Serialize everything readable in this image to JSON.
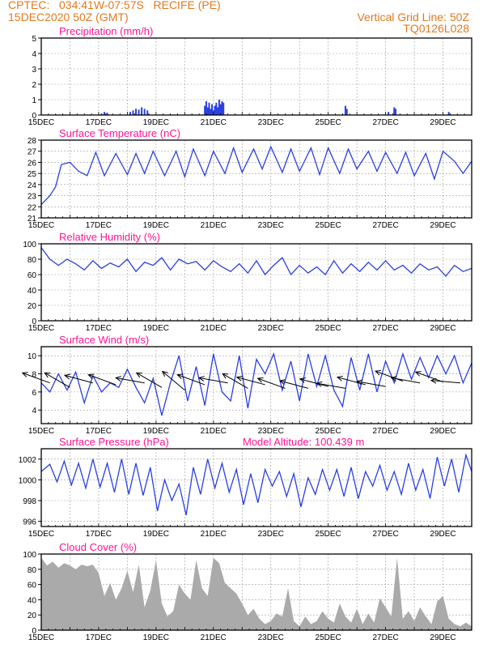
{
  "header": {
    "line1_left": "CPTEC:   034:41W-07:57S   RECIFE (PE)",
    "line2_left": "15DEC2020 50Z (GMT)",
    "line2_right": "Vertical Grid Line: 50Z",
    "line3_right": "TQ0126L028"
  },
  "colors": {
    "line": "#2b3fe0",
    "cloud": "#aaaaaa",
    "title": "#ff1493",
    "header": "#e07a1f",
    "wind": "#000000"
  },
  "x_ticks": [
    "15DEC",
    "17DEC",
    "19DEC",
    "21DEC",
    "23DEC",
    "25DEC",
    "27DEC",
    "29DEC"
  ],
  "x_tick_days": [
    0,
    2,
    4,
    6,
    8,
    10,
    12,
    14
  ],
  "x_range_days": [
    0,
    15
  ],
  "chart_data": [
    {
      "id": "precip",
      "type": "bar",
      "title": "Precipitation (mm/h)",
      "ylim": [
        0,
        5
      ],
      "yticks": [
        0,
        1,
        2,
        3,
        4,
        5
      ],
      "x_days": [
        2.1,
        2.2,
        2.3,
        3.1,
        3.2,
        3.3,
        3.4,
        3.5,
        3.6,
        3.7,
        5.7,
        5.75,
        5.8,
        5.85,
        5.9,
        5.95,
        6.0,
        6.05,
        6.1,
        6.15,
        6.2,
        6.25,
        6.3,
        6.35,
        10.6,
        10.65,
        12.1,
        12.3,
        12.35,
        14.2
      ],
      "values": [
        0.1,
        0.2,
        0.15,
        0.2,
        0.3,
        0.4,
        0.35,
        0.5,
        0.4,
        0.3,
        0.6,
        0.9,
        0.5,
        0.8,
        0.4,
        0.7,
        0.3,
        0.6,
        0.8,
        0.5,
        1.0,
        0.7,
        0.9,
        0.8,
        0.6,
        0.4,
        0.2,
        0.5,
        0.4,
        0.2
      ]
    },
    {
      "id": "temp",
      "type": "line",
      "title": "Surface Temperature (nC)",
      "ylim": [
        21,
        28
      ],
      "yticks": [
        21,
        22,
        23,
        24,
        25,
        26,
        27,
        28
      ],
      "x_days": [
        0,
        0.3,
        0.5,
        0.7,
        1.0,
        1.3,
        1.6,
        1.9,
        2.2,
        2.6,
        3.0,
        3.3,
        3.6,
        3.9,
        4.3,
        4.7,
        5.0,
        5.3,
        5.7,
        6.0,
        6.4,
        6.7,
        7.0,
        7.4,
        7.7,
        8.0,
        8.4,
        8.7,
        9.0,
        9.4,
        9.7,
        10.0,
        10.4,
        10.7,
        11.0,
        11.4,
        11.7,
        12.0,
        12.4,
        12.7,
        13.0,
        13.4,
        13.7,
        14.0,
        14.4,
        14.7,
        15.0
      ],
      "values": [
        22.2,
        23.0,
        23.8,
        25.8,
        26.0,
        25.2,
        24.8,
        26.9,
        24.8,
        26.8,
        24.9,
        26.8,
        25.0,
        27.0,
        24.8,
        27.0,
        24.7,
        27.2,
        24.8,
        27.0,
        25.0,
        27.3,
        25.1,
        27.2,
        25.4,
        27.4,
        25.1,
        27.2,
        25.2,
        27.3,
        24.9,
        27.3,
        25.0,
        27.2,
        25.4,
        27.0,
        25.2,
        26.9,
        25.0,
        26.9,
        24.8,
        26.8,
        24.5,
        27.0,
        26.1,
        25.0,
        26.1
      ]
    },
    {
      "id": "rh",
      "type": "line",
      "title": "Relative Humidity (%)",
      "ylim": [
        0,
        100
      ],
      "yticks": [
        0,
        20,
        40,
        60,
        80,
        100
      ],
      "x_days": [
        0,
        0.3,
        0.6,
        0.9,
        1.2,
        1.5,
        1.8,
        2.1,
        2.4,
        2.7,
        3.0,
        3.3,
        3.6,
        3.9,
        4.2,
        4.5,
        4.8,
        5.1,
        5.4,
        5.7,
        6.0,
        6.3,
        6.6,
        6.9,
        7.2,
        7.5,
        7.8,
        8.1,
        8.4,
        8.7,
        9.0,
        9.3,
        9.6,
        9.9,
        10.2,
        10.5,
        10.8,
        11.1,
        11.4,
        11.7,
        12.0,
        12.3,
        12.6,
        12.9,
        13.2,
        13.5,
        13.8,
        14.1,
        14.4,
        14.7,
        15.0
      ],
      "values": [
        95,
        80,
        72,
        80,
        74,
        66,
        78,
        68,
        75,
        70,
        80,
        64,
        76,
        72,
        82,
        66,
        80,
        74,
        77,
        66,
        78,
        70,
        64,
        74,
        62,
        78,
        60,
        72,
        82,
        60,
        72,
        62,
        70,
        60,
        78,
        62,
        74,
        64,
        76,
        66,
        78,
        66,
        72,
        62,
        74,
        66,
        70,
        58,
        72,
        64,
        68
      ]
    },
    {
      "id": "wind",
      "type": "line",
      "title": "Surface Wind (m/s)",
      "ylim": [
        2.5,
        11
      ],
      "yticks": [
        4,
        6,
        8,
        10
      ],
      "x_days": [
        0,
        0.3,
        0.6,
        0.9,
        1.2,
        1.5,
        1.8,
        2.1,
        2.4,
        2.7,
        3.0,
        3.3,
        3.6,
        3.9,
        4.2,
        4.5,
        4.8,
        5.1,
        5.4,
        5.7,
        6.0,
        6.3,
        6.6,
        6.9,
        7.2,
        7.5,
        7.8,
        8.1,
        8.4,
        8.7,
        9.0,
        9.3,
        9.6,
        9.9,
        10.2,
        10.5,
        10.8,
        11.1,
        11.4,
        11.7,
        12.0,
        12.3,
        12.6,
        12.9,
        13.2,
        13.5,
        13.8,
        14.1,
        14.4,
        14.7,
        15.0
      ],
      "values": [
        7.0,
        6.0,
        8.0,
        6.2,
        8.2,
        4.8,
        7.8,
        6.0,
        7.0,
        6.5,
        8.5,
        6.5,
        4.8,
        7.5,
        3.4,
        7.0,
        10.0,
        5.0,
        8.8,
        4.5,
        10.2,
        6.0,
        5.0,
        10.0,
        4.2,
        9.6,
        8.0,
        10.2,
        6.2,
        9.4,
        5.0,
        10.2,
        6.6,
        10.0,
        6.2,
        4.4,
        9.8,
        6.2,
        10.2,
        6.0,
        9.4,
        7.0,
        10.2,
        7.4,
        9.8,
        7.6,
        10.0,
        8.0,
        10.0,
        7.0,
        9.2
      ],
      "arrow_days": [
        0.3,
        1.0,
        1.8,
        2.6,
        3.6,
        4.2,
        5.0,
        5.7,
        6.5,
        7.2,
        7.8,
        8.5,
        9.3,
        10.0,
        10.6,
        11.3,
        12.0,
        12.6,
        13.2,
        14.0,
        14.6
      ],
      "arrow_speed": [
        7.0,
        6.5,
        7.0,
        6.8,
        7.0,
        6.5,
        6.2,
        6.8,
        7.0,
        6.4,
        6.8,
        6.4,
        6.4,
        6.6,
        6.4,
        6.8,
        6.6,
        7.2,
        7.0,
        7.1,
        7.0
      ],
      "arrow_dir": [
        160,
        150,
        165,
        160,
        170,
        150,
        140,
        160,
        170,
        150,
        165,
        160,
        165,
        165,
        170,
        165,
        170,
        160,
        170,
        160,
        175
      ]
    },
    {
      "id": "press",
      "type": "line",
      "title": "Surface Pressure (hPa)",
      "annotation": "Model Altitude: 100.439 m",
      "ylim": [
        995.5,
        1003
      ],
      "yticks": [
        996,
        998,
        1000,
        1002
      ],
      "x_days": [
        0,
        0.3,
        0.55,
        0.8,
        1.05,
        1.3,
        1.55,
        1.8,
        2.05,
        2.3,
        2.55,
        2.8,
        3.05,
        3.3,
        3.55,
        3.8,
        4.05,
        4.3,
        4.55,
        4.8,
        5.05,
        5.3,
        5.55,
        5.8,
        6.05,
        6.3,
        6.55,
        6.8,
        7.05,
        7.3,
        7.55,
        7.8,
        8.05,
        8.3,
        8.55,
        8.8,
        9.05,
        9.3,
        9.55,
        9.8,
        10.05,
        10.3,
        10.55,
        10.8,
        11.05,
        11.3,
        11.55,
        11.8,
        12.05,
        12.3,
        12.55,
        12.8,
        13.05,
        13.3,
        13.55,
        13.8,
        14.05,
        14.3,
        14.55,
        14.8,
        15.0
      ],
      "values": [
        1000.8,
        1001.5,
        999.8,
        1001.8,
        999.5,
        1001.6,
        999.2,
        1002.0,
        999.3,
        1001.6,
        998.8,
        1002.0,
        998.6,
        1001.6,
        998.5,
        1001.2,
        997.0,
        1000.0,
        998.0,
        999.6,
        996.6,
        1001.2,
        998.6,
        1002.0,
        999.2,
        1001.6,
        998.8,
        1001.0,
        997.6,
        1000.6,
        997.8,
        1001.0,
        999.4,
        1000.8,
        998.4,
        1000.6,
        997.4,
        1000.2,
        998.6,
        1001.0,
        999.0,
        1001.0,
        998.4,
        1001.2,
        998.2,
        1000.8,
        999.4,
        1001.4,
        999.0,
        1000.8,
        998.6,
        1001.6,
        999.0,
        1001.0,
        998.2,
        1002.2,
        999.4,
        1002.0,
        998.8,
        1002.4,
        1000.8
      ]
    },
    {
      "id": "cloud",
      "type": "area",
      "title": "Cloud Cover (%)",
      "ylim": [
        0,
        100
      ],
      "yticks": [
        0,
        20,
        40,
        60,
        80,
        100
      ],
      "x_days": [
        0,
        0.2,
        0.4,
        0.6,
        0.8,
        1.0,
        1.2,
        1.4,
        1.6,
        1.8,
        2.0,
        2.2,
        2.4,
        2.6,
        2.8,
        3.0,
        3.2,
        3.4,
        3.6,
        3.8,
        4.0,
        4.2,
        4.4,
        4.6,
        4.8,
        5.0,
        5.2,
        5.4,
        5.6,
        5.8,
        6.0,
        6.2,
        6.4,
        6.6,
        6.8,
        7.0,
        7.2,
        7.4,
        7.6,
        7.8,
        8.0,
        8.2,
        8.4,
        8.6,
        8.8,
        9.0,
        9.2,
        9.4,
        9.6,
        9.8,
        10.0,
        10.2,
        10.4,
        10.6,
        10.8,
        11.0,
        11.2,
        11.4,
        11.6,
        11.8,
        12.0,
        12.2,
        12.4,
        12.6,
        12.8,
        13.0,
        13.2,
        13.4,
        13.6,
        13.8,
        14.0,
        14.2,
        14.4,
        14.6,
        14.8,
        15.0
      ],
      "values": [
        95,
        85,
        90,
        82,
        88,
        85,
        80,
        86,
        84,
        86,
        75,
        45,
        62,
        40,
        55,
        78,
        50,
        86,
        30,
        52,
        92,
        35,
        18,
        25,
        60,
        48,
        40,
        92,
        55,
        45,
        95,
        88,
        62,
        55,
        48,
        35,
        20,
        28,
        15,
        8,
        12,
        22,
        18,
        55,
        12,
        5,
        18,
        8,
        12,
        25,
        15,
        10,
        35,
        18,
        10,
        28,
        8,
        22,
        10,
        42,
        30,
        18,
        95,
        15,
        25,
        12,
        30,
        18,
        8,
        38,
        45,
        15,
        8,
        5,
        10,
        5
      ]
    }
  ]
}
